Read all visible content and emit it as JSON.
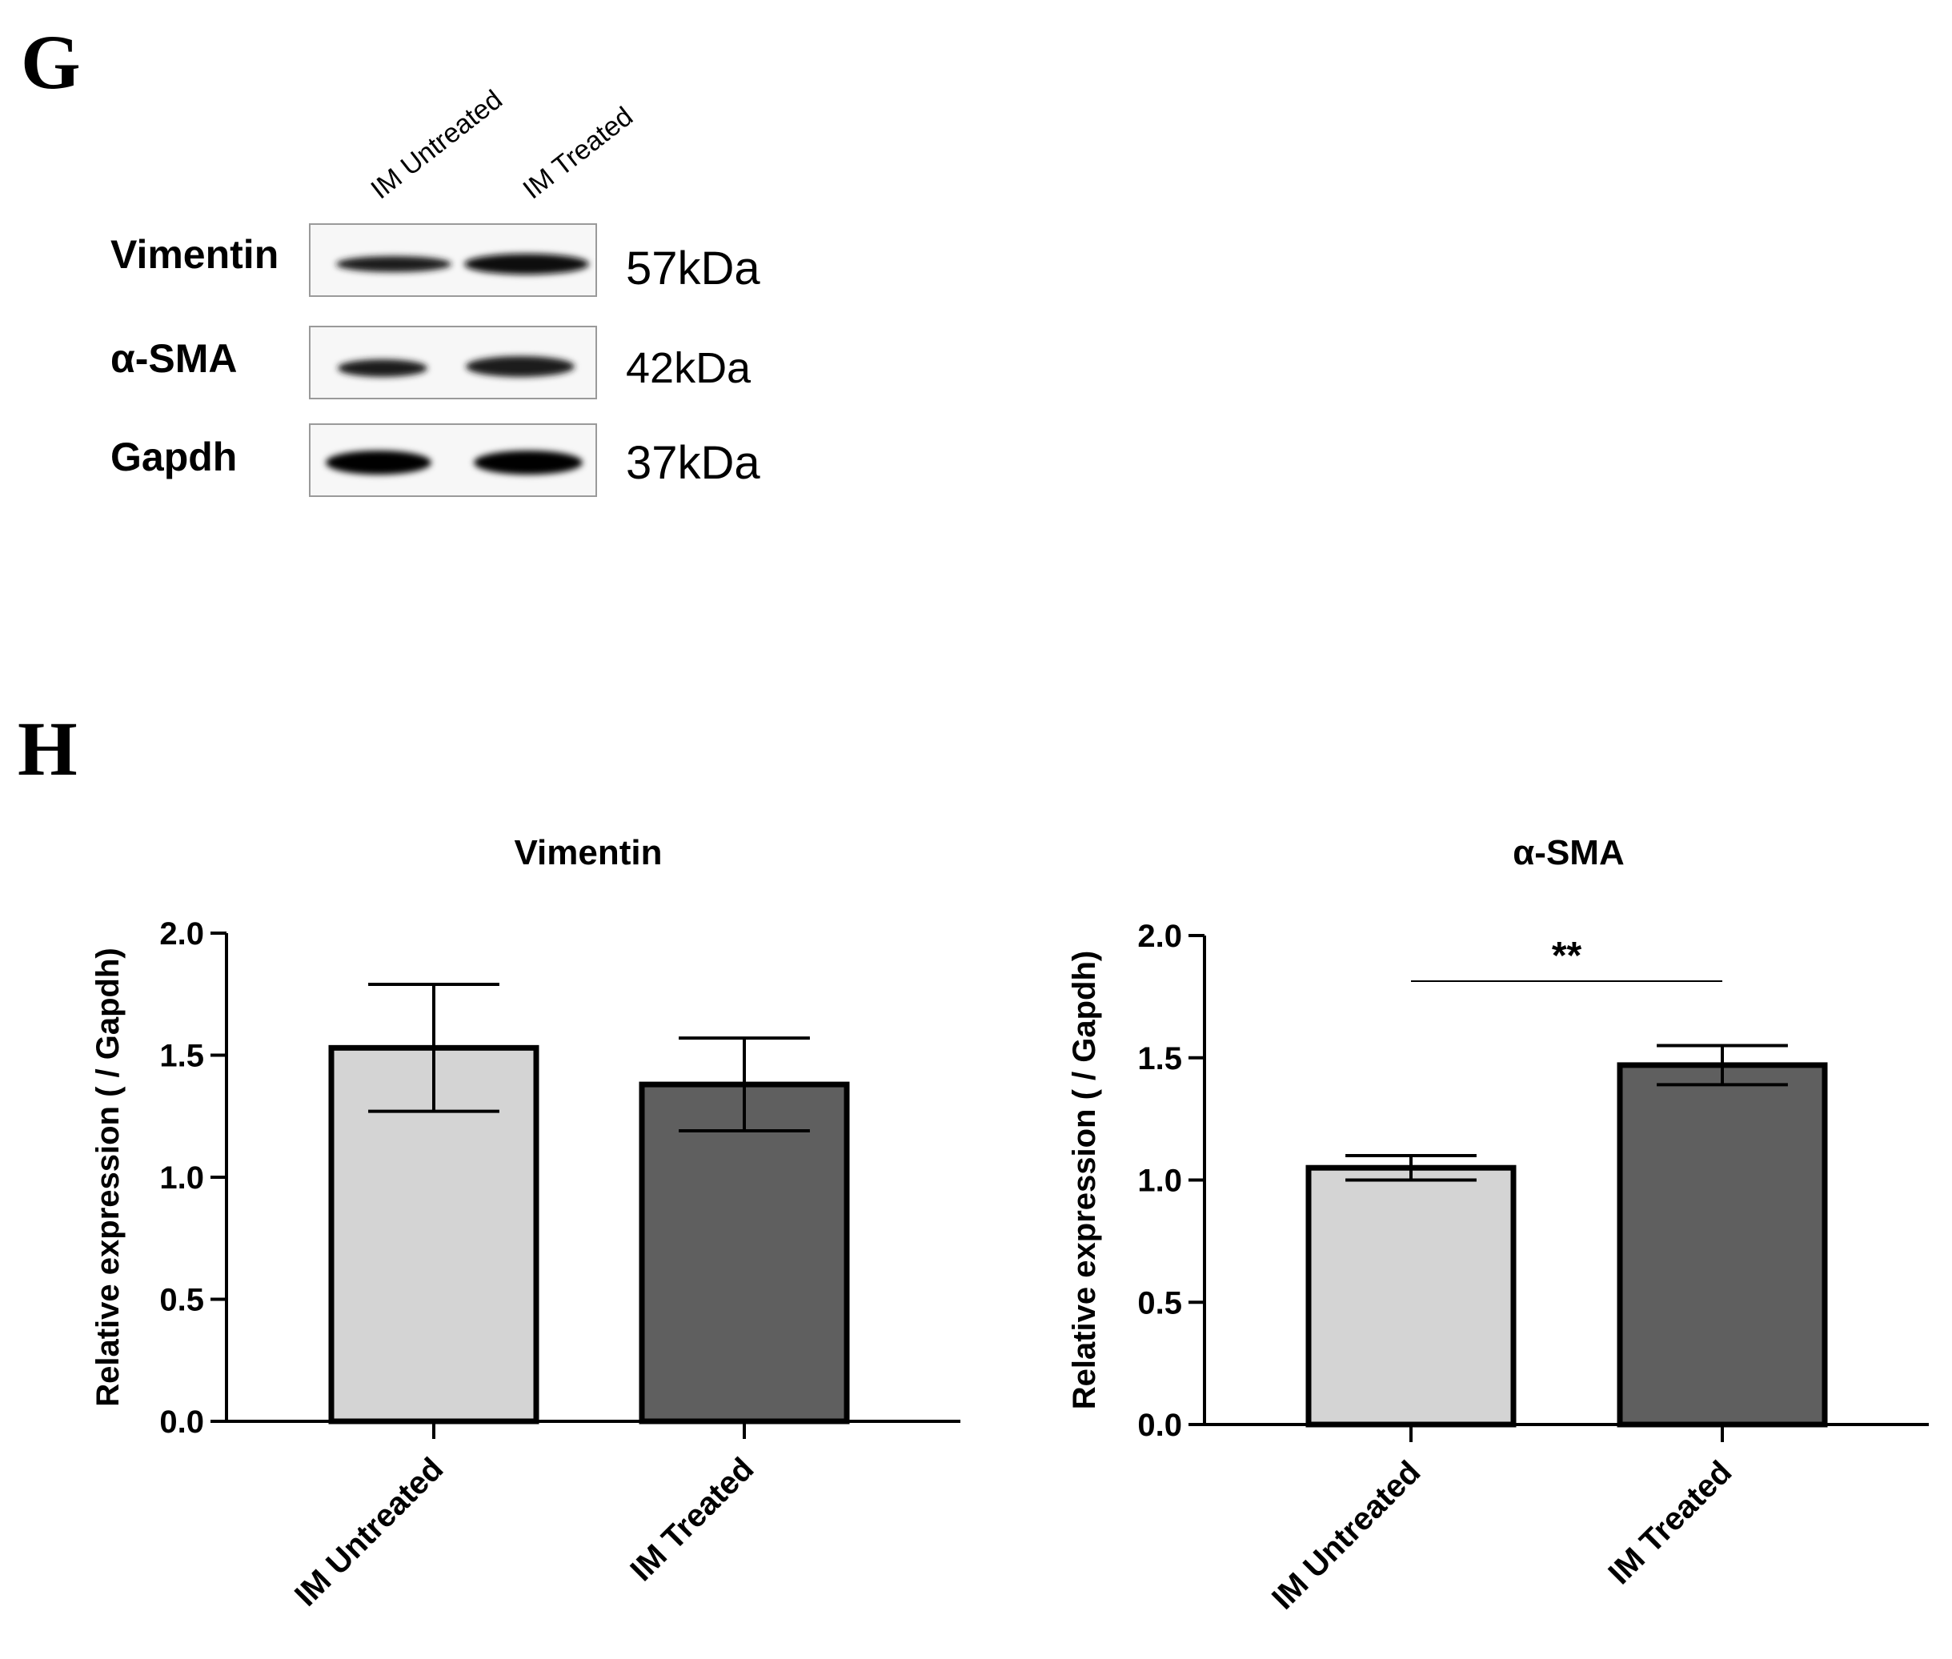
{
  "panels": {
    "g_label": "G",
    "h_label": "H"
  },
  "blot": {
    "lanes": [
      "IM Untreated",
      "IM Treated"
    ],
    "rows": [
      {
        "protein": "Vimentin",
        "size": "57kDa"
      },
      {
        "protein": "α-SMA",
        "size": "42kDa"
      },
      {
        "protein": "Gapdh",
        "size": "37kDa"
      }
    ]
  },
  "chart_data": [
    {
      "type": "bar",
      "title": "Vimentin",
      "ylabel": "Relative expression ( / Gapdh)",
      "xlabel": "",
      "categories": [
        "IM Untreated",
        "IM Treated"
      ],
      "values": [
        1.53,
        1.38
      ],
      "error": [
        0.26,
        0.19
      ],
      "colors": [
        "#d4d4d4",
        "#5f5f5f"
      ],
      "ylim": [
        0,
        2.0
      ],
      "yticks": [
        "0.0",
        "0.5",
        "1.0",
        "1.5",
        "2.0"
      ],
      "significance": "",
      "grid": false,
      "legend": "none"
    },
    {
      "type": "bar",
      "title": "α-SMA",
      "ylabel": "Relative expression ( / Gapdh)",
      "xlabel": "",
      "categories": [
        "IM Untreated",
        "IM Treated"
      ],
      "values": [
        1.05,
        1.47
      ],
      "error": [
        0.05,
        0.08
      ],
      "colors": [
        "#d4d4d4",
        "#5f5f5f"
      ],
      "ylim": [
        0,
        2.0
      ],
      "yticks": [
        "0.0",
        "0.5",
        "1.0",
        "1.5",
        "2.0"
      ],
      "significance": "**",
      "grid": false,
      "legend": "none"
    }
  ]
}
